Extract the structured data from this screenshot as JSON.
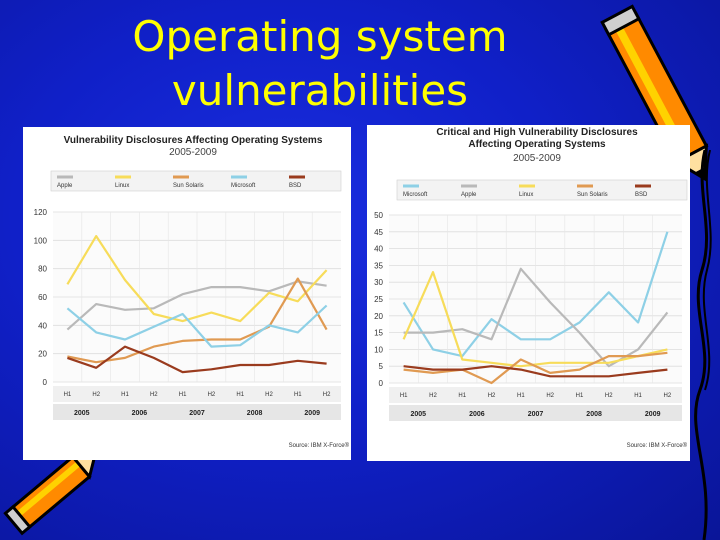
{
  "slide": {
    "title_line1": "Operating system",
    "title_line2": "vulnerabilities"
  },
  "colors": {
    "Apple": "#b9b9b9",
    "Linux": "#f7dc5a",
    "Sun Solaris": "#e09a52",
    "Microsoft": "#8ed0e6",
    "BSD": "#9a3b1e"
  },
  "chart_data": [
    {
      "type": "line",
      "title": "Vulnerability Disclosures Affecting Operating Systems",
      "subtitle": "2005-2009",
      "categories": [
        "H1",
        "H2",
        "H1",
        "H2",
        "H1",
        "H2",
        "H1",
        "H2",
        "H1",
        "H2"
      ],
      "years": [
        "2005",
        "2006",
        "2007",
        "2008",
        "2009"
      ],
      "ylim": [
        0,
        120
      ],
      "yticks": [
        0,
        20,
        40,
        60,
        80,
        100,
        120
      ],
      "legend_position": "top",
      "source": "Source: IBM X-Force®",
      "series": [
        {
          "name": "Apple",
          "values": [
            37,
            55,
            51,
            52,
            62,
            67,
            67,
            64,
            71,
            68
          ]
        },
        {
          "name": "Linux",
          "values": [
            69,
            103,
            72,
            48,
            43,
            49,
            43,
            63,
            57,
            79
          ]
        },
        {
          "name": "Sun Solaris",
          "values": [
            18,
            14,
            17,
            25,
            29,
            30,
            30,
            39,
            73,
            37
          ]
        },
        {
          "name": "Microsoft",
          "values": [
            52,
            35,
            30,
            39,
            48,
            25,
            26,
            40,
            35,
            54
          ]
        },
        {
          "name": "BSD",
          "values": [
            17,
            10,
            25,
            17,
            7,
            9,
            12,
            12,
            15,
            13
          ]
        }
      ]
    },
    {
      "type": "line",
      "title": "Critical and High Vulnerability Disclosures Affecting Operating Systems",
      "title_line1": "Critical and High Vulnerability Disclosures",
      "title_line2": "Affecting Operating Systems",
      "subtitle": "2005-2009",
      "categories": [
        "H1",
        "H2",
        "H1",
        "H2",
        "H1",
        "H2",
        "H1",
        "H2",
        "H1",
        "H2"
      ],
      "years": [
        "2005",
        "2006",
        "2007",
        "2008",
        "2009"
      ],
      "ylim": [
        0,
        50
      ],
      "yticks": [
        0,
        5,
        10,
        15,
        20,
        25,
        30,
        35,
        40,
        45,
        50
      ],
      "legend_position": "top",
      "source": "Source: IBM X-Force®",
      "series": [
        {
          "name": "Microsoft",
          "values": [
            24,
            10,
            8,
            19,
            13,
            13,
            18,
            27,
            18,
            45
          ]
        },
        {
          "name": "Apple",
          "values": [
            15,
            15,
            16,
            13,
            34,
            24,
            15,
            5,
            10,
            21
          ]
        },
        {
          "name": "Linux",
          "values": [
            13,
            33,
            7,
            6,
            5,
            6,
            6,
            6,
            8,
            10
          ]
        },
        {
          "name": "Sun Solaris",
          "values": [
            4,
            3,
            4,
            0,
            7,
            3,
            4,
            8,
            8,
            9
          ]
        },
        {
          "name": "BSD",
          "values": [
            5,
            4,
            4,
            5,
            4,
            2,
            2,
            2,
            3,
            4
          ]
        }
      ]
    }
  ]
}
